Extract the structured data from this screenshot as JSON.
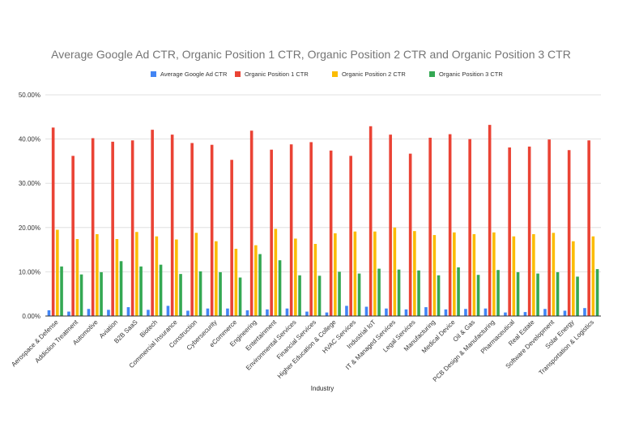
{
  "chart_data": {
    "type": "bar",
    "title": "Average Google Ad CTR, Organic Position 1 CTR, Organic Position 2 CTR and Organic Position 3 CTR",
    "xlabel": "Industry",
    "ylabel": "",
    "ylim": [
      0,
      50
    ],
    "yticks": [
      "0.00%",
      "10.00%",
      "20.00%",
      "30.00%",
      "40.00%",
      "50.00%"
    ],
    "grid": true,
    "legend_position": "top",
    "categories": [
      "Aerospace & Defense",
      "Addiction Treatment",
      "Automotive",
      "Aviation",
      "B2B SaaS",
      "Biotech",
      "Commercial Insurance",
      "Construction",
      "Cybersecurity",
      "eCommerce",
      "Engineering",
      "Entertainment",
      "Environmental Services",
      "Financial Services",
      "Higher Education & College",
      "HVAC Services",
      "Industrial IoT",
      "IT & Managed Services",
      "Legal Services",
      "Manufacturing",
      "Medical Device",
      "Oil & Gas",
      "PCB Design & Manufacturing",
      "Pharmaceutical",
      "Real Estate",
      "Software Development",
      "Solar Energy",
      "Transportation & Logistics"
    ],
    "series": [
      {
        "name": "Average Google Ad CTR",
        "color": "#4285f4",
        "values": [
          1.3,
          1.0,
          1.6,
          1.4,
          2.0,
          1.4,
          2.3,
          1.2,
          1.7,
          1.7,
          1.3,
          1.5,
          1.7,
          1.0,
          0.8,
          2.3,
          2.1,
          1.7,
          1.5,
          2.0,
          1.5,
          1.6,
          1.7,
          0.8,
          0.9,
          1.6,
          1.2,
          1.8
        ]
      },
      {
        "name": "Organic Position 1 CTR",
        "color": "#ea4335",
        "values": [
          42.6,
          36.2,
          40.2,
          39.4,
          39.7,
          42.1,
          41.0,
          39.1,
          38.7,
          35.3,
          41.9,
          37.6,
          38.8,
          39.3,
          37.4,
          36.2,
          42.9,
          41.0,
          36.7,
          40.3,
          41.1,
          40.0,
          43.2,
          38.1,
          38.3,
          39.9,
          37.5,
          39.7
        ]
      },
      {
        "name": "Organic Position 2 CTR",
        "color": "#fbbc04",
        "values": [
          19.5,
          17.4,
          18.5,
          17.4,
          19.0,
          18.0,
          17.3,
          18.8,
          16.9,
          15.2,
          16.0,
          19.7,
          17.5,
          16.3,
          18.7,
          19.1,
          19.1,
          20.0,
          19.2,
          18.3,
          18.9,
          18.5,
          18.9,
          18.0,
          18.5,
          18.8,
          16.9,
          18.0
        ]
      },
      {
        "name": "Organic Position 3 CTR",
        "color": "#34a853",
        "values": [
          11.2,
          9.4,
          9.9,
          12.4,
          11.2,
          11.6,
          9.5,
          10.1,
          9.9,
          8.7,
          14.0,
          12.6,
          9.2,
          9.1,
          10.0,
          9.6,
          10.7,
          10.5,
          10.3,
          9.2,
          11.0,
          9.3,
          10.4,
          9.9,
          9.6,
          9.9,
          8.9,
          10.6
        ]
      }
    ]
  }
}
